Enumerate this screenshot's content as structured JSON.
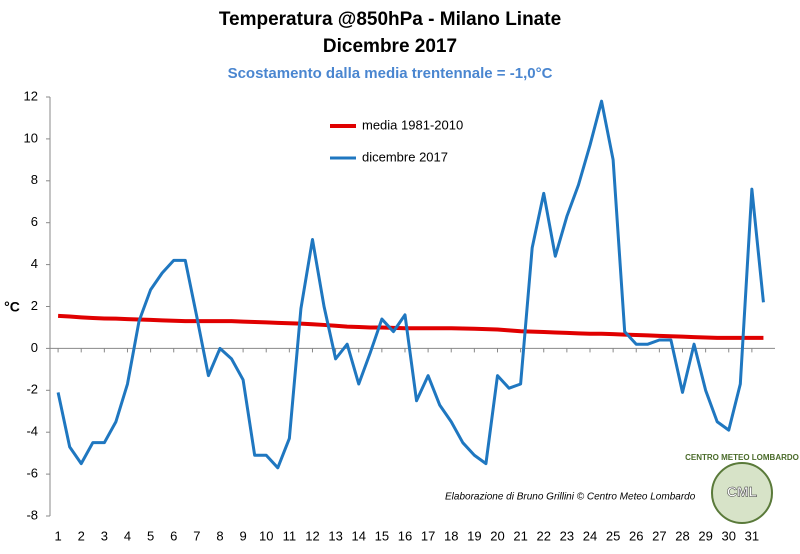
{
  "chart_data": {
    "type": "line",
    "title": "Temperatura @850hPa - Milano Linate",
    "subtitle": "Dicembre 2017",
    "annotation": "Scostamento dalla media trentennale = -1,0°C",
    "ylabel": "°C",
    "credit": "Elaborazione di Bruno Grillini  ©  Centro Meteo Lombardo",
    "logo_ring": "CENTRO METEO LOMBARDO",
    "logo": "CML",
    "x": [
      1,
      1.5,
      2,
      2.5,
      3,
      3.5,
      4,
      4.5,
      5,
      5.5,
      6,
      6.5,
      7,
      7.5,
      8,
      8.5,
      9,
      9.5,
      10,
      10.5,
      11,
      11.5,
      12,
      12.5,
      13,
      13.5,
      14,
      14.5,
      15,
      15.5,
      16,
      16.5,
      17,
      17.5,
      18,
      18.5,
      19,
      19.5,
      20,
      20.5,
      21,
      21.5,
      22,
      22.5,
      23,
      23.5,
      24,
      24.5,
      25,
      25.5,
      26,
      26.5,
      27,
      27.5,
      28,
      28.5,
      29,
      29.5,
      30,
      30.5,
      31,
      31.5
    ],
    "series": [
      {
        "name": "media 1981-2010",
        "color": "#e00000",
        "values": [
          1.55,
          1.52,
          1.48,
          1.45,
          1.43,
          1.42,
          1.4,
          1.38,
          1.36,
          1.34,
          1.32,
          1.3,
          1.3,
          1.3,
          1.3,
          1.3,
          1.28,
          1.26,
          1.24,
          1.22,
          1.2,
          1.18,
          1.15,
          1.12,
          1.08,
          1.04,
          1.02,
          1.0,
          1.0,
          0.98,
          0.96,
          0.96,
          0.96,
          0.96,
          0.96,
          0.95,
          0.94,
          0.92,
          0.9,
          0.86,
          0.82,
          0.8,
          0.78,
          0.76,
          0.74,
          0.72,
          0.7,
          0.7,
          0.68,
          0.66,
          0.64,
          0.62,
          0.6,
          0.58,
          0.56,
          0.54,
          0.52,
          0.5,
          0.5,
          0.5,
          0.5,
          0.5
        ]
      },
      {
        "name": "dicembre 2017",
        "color": "#1f77c0",
        "values": [
          -2.1,
          -4.7,
          -5.5,
          -4.5,
          -4.5,
          -3.5,
          -1.7,
          1.3,
          2.8,
          3.6,
          4.2,
          4.2,
          1.5,
          -1.3,
          0,
          -0.5,
          -1.5,
          -5.1,
          -5.1,
          -5.7,
          -4.3,
          1.9,
          5.2,
          2.0,
          -0.5,
          0.2,
          -1.7,
          -0.2,
          1.4,
          0.8,
          1.6,
          -2.5,
          -1.3,
          -2.7,
          -3.5,
          -4.5,
          -5.1,
          -5.5,
          -1.3,
          -1.9,
          -1.7,
          4.8,
          7.4,
          4.4,
          6.3,
          7.8,
          9.7,
          11.8,
          9.0,
          0.8,
          0.2,
          0.2,
          0.4,
          0.4,
          -2.1,
          0.2,
          -2.0,
          -3.5,
          -3.9,
          -1.7,
          7.6,
          2.2
        ]
      }
    ],
    "xlim": [
      0.65,
      32
    ],
    "xticks": [
      1,
      2,
      3,
      4,
      5,
      6,
      7,
      8,
      9,
      10,
      11,
      12,
      13,
      14,
      15,
      16,
      17,
      18,
      19,
      20,
      21,
      22,
      23,
      24,
      25,
      26,
      27,
      28,
      29,
      30,
      31
    ],
    "ylim": [
      -8,
      12
    ],
    "yticks": [
      -8,
      -6,
      -4,
      -2,
      0,
      2,
      4,
      6,
      8,
      10,
      12
    ],
    "grid": false
  }
}
